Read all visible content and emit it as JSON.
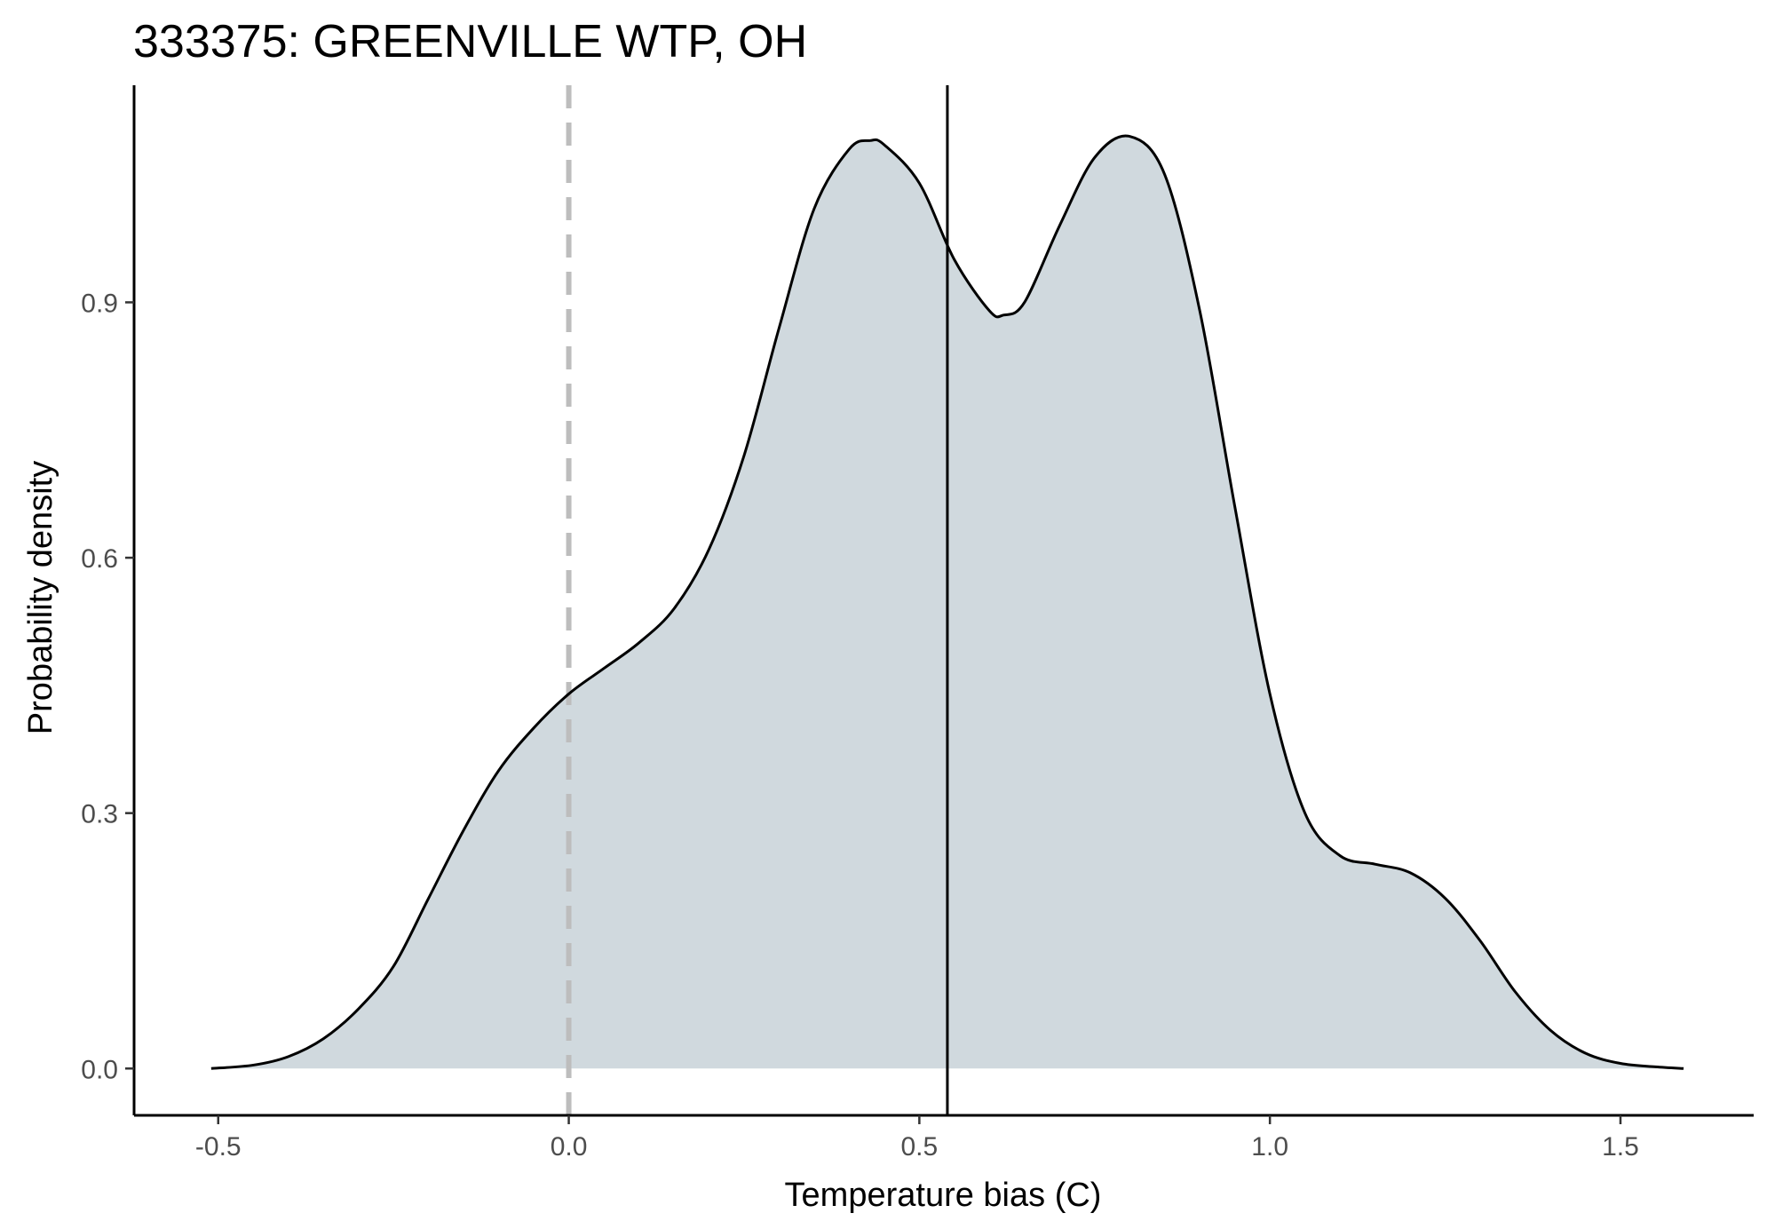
{
  "chart_data": {
    "type": "area",
    "title": "333375: GREENVILLE WTP, OH",
    "xlabel": "Temperature bias (C)",
    "ylabel": "Probability density",
    "xlim": [
      -0.62,
      1.69
    ],
    "ylim": [
      -0.055,
      1.155
    ],
    "x_ticks": [
      -0.5,
      0.0,
      0.5,
      1.0,
      1.5
    ],
    "x_tick_labels": [
      "-0.5",
      "0.0",
      "0.5",
      "1.0",
      "1.5"
    ],
    "y_ticks": [
      0.0,
      0.3,
      0.6,
      0.9
    ],
    "y_tick_labels": [
      "0.0",
      "0.3",
      "0.6",
      "0.9"
    ],
    "grid": false,
    "legend": "none",
    "reference_lines": [
      {
        "x": 0.0,
        "style": "dashed",
        "color": "#bdbdbd"
      },
      {
        "x": 0.54,
        "style": "solid",
        "color": "#000000"
      }
    ],
    "fill_color": "#d0d9de",
    "line_color": "#000000",
    "series": [
      {
        "x": [
          -0.51,
          -0.45,
          -0.4,
          -0.35,
          -0.3,
          -0.25,
          -0.2,
          -0.15,
          -0.1,
          -0.05,
          0.0,
          0.05,
          0.1,
          0.15,
          0.2,
          0.25,
          0.3,
          0.35,
          0.4,
          0.43,
          0.45,
          0.5,
          0.55,
          0.6,
          0.62,
          0.65,
          0.7,
          0.75,
          0.8,
          0.85,
          0.9,
          0.95,
          1.0,
          1.05,
          1.1,
          1.15,
          1.2,
          1.25,
          1.3,
          1.35,
          1.4,
          1.45,
          1.5,
          1.55,
          1.59
        ],
        "y": [
          0.0,
          0.004,
          0.014,
          0.035,
          0.07,
          0.12,
          0.2,
          0.28,
          0.35,
          0.4,
          0.44,
          0.47,
          0.5,
          0.54,
          0.61,
          0.72,
          0.87,
          1.01,
          1.08,
          1.09,
          1.085,
          1.04,
          0.95,
          0.89,
          0.885,
          0.9,
          0.99,
          1.07,
          1.095,
          1.05,
          0.89,
          0.66,
          0.44,
          0.3,
          0.25,
          0.24,
          0.23,
          0.2,
          0.15,
          0.09,
          0.045,
          0.018,
          0.006,
          0.002,
          0.0
        ]
      }
    ]
  }
}
